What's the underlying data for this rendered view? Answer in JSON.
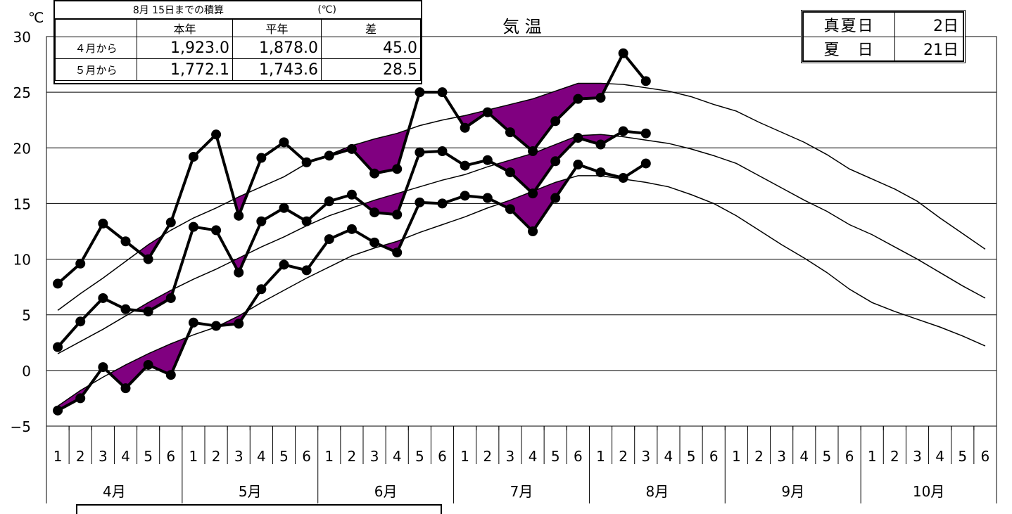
{
  "chart_data": {
    "type": "line",
    "title": "気 温",
    "ylabel": "℃",
    "ylim": [
      -5,
      30
    ],
    "yticks": [
      -5,
      0,
      5,
      10,
      15,
      20,
      25,
      30
    ],
    "grid": true,
    "periods": [
      "1",
      "2",
      "3",
      "4",
      "5",
      "6",
      "1",
      "2",
      "3",
      "4",
      "5",
      "6",
      "1",
      "2",
      "3",
      "4",
      "5",
      "6",
      "1",
      "2",
      "3",
      "4",
      "5",
      "6",
      "1",
      "2",
      "3",
      "4",
      "5",
      "6",
      "1",
      "2",
      "3",
      "4",
      "5",
      "6",
      "1",
      "2",
      "3",
      "4",
      "5",
      "6"
    ],
    "months": [
      "4月",
      "5月",
      "6月",
      "7月",
      "8月",
      "9月",
      "10月"
    ],
    "series": [
      {
        "role": "max-actual",
        "values": [
          7.8,
          9.6,
          13.2,
          11.6,
          10.0,
          13.3,
          19.2,
          21.2,
          13.9,
          19.1,
          20.5,
          18.7,
          19.3,
          19.9,
          17.7,
          18.1,
          25.0,
          25.0,
          21.8,
          23.2,
          21.4,
          19.7,
          22.4,
          24.4,
          24.5,
          28.5,
          26.0
        ]
      },
      {
        "role": "max-normal",
        "values": [
          5.4,
          6.9,
          8.3,
          9.8,
          11.3,
          12.6,
          13.7,
          14.6,
          15.6,
          16.5,
          17.4,
          18.6,
          19.4,
          20.2,
          20.8,
          21.3,
          22.0,
          22.5,
          22.9,
          23.4,
          23.9,
          24.4,
          25.1,
          25.8,
          25.8,
          25.7,
          25.4,
          25.1,
          24.6,
          23.9,
          23.3,
          22.3,
          21.4,
          20.5,
          19.4,
          18.1,
          17.2,
          16.3,
          15.2,
          13.7,
          12.3,
          10.9
        ]
      },
      {
        "role": "mean-actual",
        "values": [
          2.1,
          4.4,
          6.5,
          5.5,
          5.3,
          6.5,
          12.9,
          12.6,
          8.8,
          13.4,
          14.6,
          13.4,
          15.2,
          15.8,
          14.2,
          14.0,
          19.6,
          19.7,
          18.4,
          18.9,
          17.8,
          15.9,
          18.8,
          20.9,
          20.3,
          21.5,
          21.3
        ]
      },
      {
        "role": "mean-normal",
        "values": [
          1.5,
          2.6,
          3.7,
          4.9,
          6.1,
          7.2,
          8.2,
          9.1,
          10.1,
          11.1,
          12.0,
          13.0,
          13.9,
          14.6,
          15.3,
          15.9,
          16.5,
          17.1,
          17.6,
          18.3,
          18.9,
          19.5,
          20.3,
          21.1,
          21.2,
          21.0,
          20.7,
          20.4,
          19.9,
          19.3,
          18.6,
          17.5,
          16.4,
          15.3,
          14.3,
          13.1,
          12.2,
          11.1,
          10.0,
          8.8,
          7.6,
          6.5
        ]
      },
      {
        "role": "min-actual",
        "values": [
          -3.6,
          -2.5,
          0.3,
          -1.6,
          0.5,
          -0.4,
          4.3,
          4.0,
          4.2,
          7.3,
          9.5,
          9.0,
          11.8,
          12.7,
          11.5,
          10.6,
          15.1,
          15.0,
          15.7,
          15.5,
          14.5,
          12.5,
          15.5,
          18.5,
          17.8,
          17.3,
          18.6
        ]
      },
      {
        "role": "min-normal",
        "values": [
          -3.2,
          -1.8,
          -0.6,
          0.5,
          1.5,
          2.4,
          3.2,
          3.9,
          4.9,
          6.1,
          7.2,
          8.3,
          9.3,
          10.3,
          11.0,
          11.6,
          12.4,
          13.1,
          13.8,
          14.6,
          15.3,
          16.1,
          16.9,
          17.5,
          17.5,
          17.2,
          16.9,
          16.5,
          15.8,
          15.0,
          13.9,
          12.6,
          11.3,
          10.1,
          8.8,
          7.3,
          6.1,
          5.3,
          4.6,
          3.9,
          3.1,
          2.2
        ]
      }
    ],
    "colors": {
      "fill": "#800080",
      "line": "#000000",
      "axis_neg": "#ff0000"
    }
  },
  "accum_table": {
    "title": "8月 15日までの積算",
    "unit": "(℃)",
    "headers": [
      "本年",
      "平年",
      "差"
    ],
    "rows": [
      {
        "label": "４月から",
        "this_year": "1,923.0",
        "normal": "1,878.0",
        "diff": "45.0"
      },
      {
        "label": "５月から",
        "this_year": "1,772.1",
        "normal": "1,743.6",
        "diff": "28.5"
      }
    ]
  },
  "summer_days": {
    "rows": [
      {
        "label": "真夏日",
        "value": "2日"
      },
      {
        "label": "夏　日",
        "value": "21日"
      }
    ]
  }
}
